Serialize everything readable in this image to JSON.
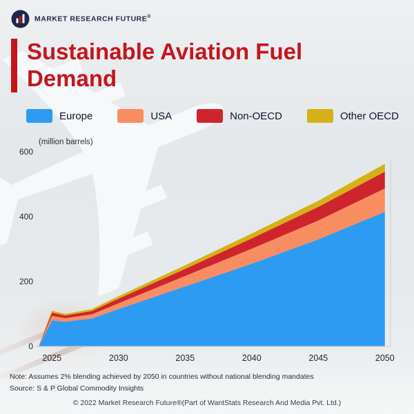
{
  "header": {
    "brand": "MARKET RESEARCH FUTURE",
    "registered_mark": "®"
  },
  "title": "Sustainable Aviation Fuel Demand",
  "icons": {
    "background_plane": "✈"
  },
  "legend": [
    {
      "label": "Europe",
      "color": "#2E9BF3"
    },
    {
      "label": "USA",
      "color": "#F88D61"
    },
    {
      "label": "Non-OECD",
      "color": "#CE252C"
    },
    {
      "label": "Other OECD",
      "color": "#D5B117"
    }
  ],
  "footer": {
    "note": "Note: Assumes 2% blending achieved by 2050 in countries without national blending mandates",
    "source": "Source: S & P Global Commodity Insights",
    "copyright": "© 2022 Market Research Future®(Part of WantStats Research And Media Pvt. Ltd.)"
  },
  "chart_data": {
    "type": "area",
    "stacked": true,
    "title": "Sustainable Aviation Fuel Demand",
    "ylabel": "(million barrels)",
    "xlabel": "",
    "x": [
      2024,
      2025,
      2026,
      2028,
      2030,
      2035,
      2040,
      2045,
      2050
    ],
    "series": [
      {
        "name": "Europe",
        "color": "#2E9BF3",
        "values": [
          0,
          80,
          76,
          86,
          115,
          185,
          255,
          330,
          415
        ]
      },
      {
        "name": "USA",
        "color": "#F88D61",
        "values": [
          0,
          14,
          11,
          13,
          18,
          32,
          46,
          58,
          72
        ]
      },
      {
        "name": "Non-OECD",
        "color": "#CE252C",
        "values": [
          0,
          10,
          8,
          10,
          14,
          22,
          32,
          42,
          52
        ]
      },
      {
        "name": "Other OECD",
        "color": "#D5B117",
        "values": [
          0,
          6,
          5,
          6,
          8,
          11,
          15,
          19,
          24
        ]
      }
    ],
    "yticks": [
      0,
      200,
      400,
      600
    ],
    "xticks": [
      2025,
      2030,
      2035,
      2040,
      2045,
      2050
    ],
    "ylim": [
      0,
      600
    ],
    "xlim": [
      2024,
      2051
    ],
    "grid": false,
    "legend_position": "top"
  }
}
